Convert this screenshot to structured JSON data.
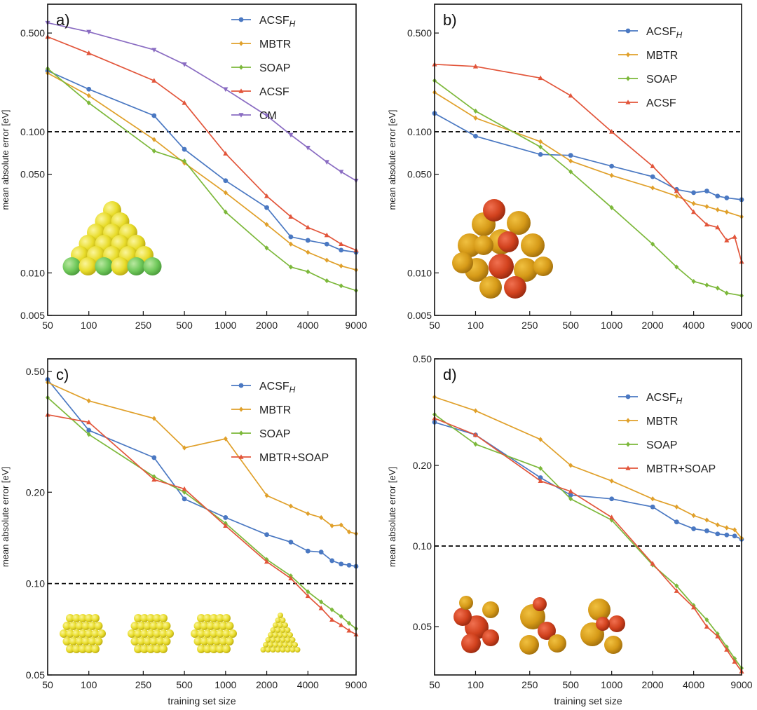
{
  "colors": {
    "ACSF_H": "#4a78c2",
    "MBTR": "#e0a02a",
    "SOAP": "#7cb83a",
    "ACSF": "#e2553a",
    "CM": "#8a6cc2",
    "MBTR+SOAP": "#e2553a"
  },
  "threshold": 0.1,
  "chart_data": [
    {
      "type": "line",
      "panel_label": "a)",
      "ylabel": "mean absolute error [eV]",
      "xlabel": "",
      "x_scale": "log",
      "y_scale": "log",
      "xlim": [
        50,
        9000
      ],
      "ylim": [
        0.005,
        0.8
      ],
      "xticks": [
        50,
        100,
        250,
        500,
        1000,
        2000,
        4000,
        9000
      ],
      "xtick_labels": [
        "50",
        "100",
        "250",
        "500",
        "1000",
        "2000",
        "4000",
        "9000"
      ],
      "yticks": [
        0.005,
        0.01,
        0.05,
        0.1,
        0.5
      ],
      "ytick_labels": [
        "0.005",
        "0.010",
        "0.050",
        "0.100",
        "0.500"
      ],
      "legend": "top-right",
      "series": [
        {
          "name": "ACSF",
          "legend_sub": "H",
          "color_key": "ACSF_H",
          "marker": "circle",
          "x": [
            50,
            100,
            300,
            500,
            1000,
            2000,
            3000,
            4000,
            5500,
            7000,
            9000
          ],
          "y": [
            0.27,
            0.2,
            0.13,
            0.075,
            0.045,
            0.029,
            0.018,
            0.017,
            0.016,
            0.0145,
            0.014
          ]
        },
        {
          "name": "MBTR",
          "color_key": "MBTR",
          "marker": "diamond",
          "x": [
            50,
            100,
            300,
            500,
            1000,
            2000,
            3000,
            4000,
            5500,
            7000,
            9000
          ],
          "y": [
            0.26,
            0.18,
            0.088,
            0.06,
            0.037,
            0.022,
            0.016,
            0.014,
            0.0123,
            0.0112,
            0.0105
          ]
        },
        {
          "name": "SOAP",
          "color_key": "SOAP",
          "marker": "diamond",
          "x": [
            50,
            100,
            300,
            500,
            1000,
            2000,
            3000,
            4000,
            5500,
            7000,
            9000
          ],
          "y": [
            0.28,
            0.16,
            0.073,
            0.062,
            0.027,
            0.015,
            0.011,
            0.0102,
            0.0088,
            0.0081,
            0.0075
          ]
        },
        {
          "name": "ACSF",
          "color_key": "ACSF",
          "marker": "triangle",
          "x": [
            50,
            100,
            300,
            500,
            1000,
            2000,
            3000,
            4000,
            5500,
            7000,
            9000
          ],
          "y": [
            0.47,
            0.36,
            0.23,
            0.16,
            0.07,
            0.035,
            0.025,
            0.021,
            0.0185,
            0.016,
            0.0145
          ]
        },
        {
          "name": "CM",
          "color_key": "CM",
          "marker": "triangle-down",
          "x": [
            50,
            100,
            300,
            500,
            1000,
            2000,
            3000,
            4000,
            5500,
            7000,
            9000
          ],
          "y": [
            0.59,
            0.51,
            0.38,
            0.3,
            0.2,
            0.13,
            0.095,
            0.077,
            0.061,
            0.052,
            0.045
          ]
        }
      ]
    },
    {
      "type": "line",
      "panel_label": "b)",
      "ylabel": "mean absolute error [eV]",
      "xlabel": "",
      "x_scale": "log",
      "y_scale": "log",
      "xlim": [
        50,
        9000
      ],
      "ylim": [
        0.005,
        0.8
      ],
      "xticks": [
        50,
        100,
        250,
        500,
        1000,
        2000,
        4000,
        9000
      ],
      "xtick_labels": [
        "50",
        "100",
        "250",
        "500",
        "1000",
        "2000",
        "4000",
        "9000"
      ],
      "yticks": [
        0.005,
        0.01,
        0.05,
        0.1,
        0.5
      ],
      "ytick_labels": [
        "0.005",
        "0.010",
        "0.050",
        "0.100",
        "0.500"
      ],
      "legend": "top-right",
      "series": [
        {
          "name": "ACSF",
          "legend_sub": "H",
          "color_key": "ACSF_H",
          "marker": "circle",
          "x": [
            50,
            100,
            300,
            500,
            1000,
            2000,
            3000,
            4000,
            5000,
            6000,
            7000,
            9000
          ],
          "y": [
            0.135,
            0.093,
            0.069,
            0.068,
            0.057,
            0.048,
            0.039,
            0.037,
            0.038,
            0.035,
            0.034,
            0.033
          ]
        },
        {
          "name": "MBTR",
          "color_key": "MBTR",
          "marker": "diamond",
          "x": [
            50,
            100,
            300,
            500,
            1000,
            2000,
            3000,
            4000,
            5000,
            6000,
            7000,
            9000
          ],
          "y": [
            0.19,
            0.125,
            0.085,
            0.062,
            0.049,
            0.04,
            0.035,
            0.031,
            0.0295,
            0.028,
            0.027,
            0.025
          ]
        },
        {
          "name": "SOAP",
          "color_key": "SOAP",
          "marker": "diamond",
          "x": [
            50,
            100,
            300,
            500,
            1000,
            2000,
            3000,
            4000,
            5000,
            6000,
            7000,
            9000
          ],
          "y": [
            0.23,
            0.14,
            0.078,
            0.052,
            0.029,
            0.016,
            0.011,
            0.0087,
            0.0082,
            0.0078,
            0.0072,
            0.0069
          ]
        },
        {
          "name": "ACSF",
          "color_key": "ACSF",
          "marker": "triangle",
          "x": [
            50,
            100,
            300,
            500,
            1000,
            2000,
            3000,
            4000,
            5000,
            6000,
            7000,
            8000,
            9000
          ],
          "y": [
            0.3,
            0.29,
            0.24,
            0.18,
            0.1,
            0.057,
            0.038,
            0.027,
            0.022,
            0.021,
            0.017,
            0.018,
            0.012
          ]
        }
      ]
    },
    {
      "type": "line",
      "panel_label": "c)",
      "ylabel": "mean absolute error [eV]",
      "xlabel": "training set size",
      "x_scale": "log",
      "y_scale": "log",
      "xlim": [
        50,
        9000
      ],
      "ylim": [
        0.05,
        0.55
      ],
      "xticks": [
        50,
        100,
        250,
        500,
        1000,
        2000,
        4000,
        9000
      ],
      "xtick_labels": [
        "50",
        "100",
        "250",
        "500",
        "1000",
        "2000",
        "4000",
        "9000"
      ],
      "yticks": [
        0.05,
        0.1,
        0.2,
        0.5
      ],
      "ytick_labels": [
        "0.05",
        "0.10",
        "0.20",
        "0.50"
      ],
      "legend": "top-right",
      "series": [
        {
          "name": "ACSF",
          "legend_sub": "H",
          "color_key": "ACSF_H",
          "marker": "circle",
          "x": [
            50,
            100,
            300,
            500,
            1000,
            2000,
            3000,
            4000,
            5000,
            6000,
            7000,
            8000,
            9000
          ],
          "y": [
            0.47,
            0.32,
            0.26,
            0.19,
            0.165,
            0.145,
            0.137,
            0.128,
            0.127,
            0.119,
            0.116,
            0.115,
            0.114
          ]
        },
        {
          "name": "MBTR",
          "color_key": "MBTR",
          "marker": "diamond",
          "x": [
            50,
            100,
            300,
            500,
            1000,
            2000,
            3000,
            4000,
            5000,
            6000,
            7000,
            8000,
            9000
          ],
          "y": [
            0.46,
            0.4,
            0.35,
            0.28,
            0.3,
            0.195,
            0.18,
            0.17,
            0.165,
            0.155,
            0.156,
            0.148,
            0.146
          ]
        },
        {
          "name": "SOAP",
          "color_key": "SOAP",
          "marker": "diamond",
          "x": [
            50,
            100,
            300,
            500,
            1000,
            2000,
            3000,
            4000,
            5000,
            6000,
            7000,
            8000,
            9000
          ],
          "y": [
            0.41,
            0.31,
            0.225,
            0.2,
            0.158,
            0.12,
            0.106,
            0.094,
            0.087,
            0.082,
            0.078,
            0.074,
            0.071
          ]
        },
        {
          "name": "MBTR+SOAP",
          "color_key": "MBTR+SOAP",
          "marker": "triangle",
          "x": [
            50,
            100,
            300,
            500,
            1000,
            2000,
            3000,
            4000,
            5000,
            6000,
            7000,
            8000,
            9000
          ],
          "y": [
            0.36,
            0.34,
            0.22,
            0.205,
            0.155,
            0.118,
            0.104,
            0.091,
            0.083,
            0.076,
            0.073,
            0.07,
            0.068
          ]
        }
      ]
    },
    {
      "type": "line",
      "panel_label": "d)",
      "ylabel": "mean absolute error [eV]",
      "xlabel": "training set size",
      "x_scale": "log",
      "y_scale": "log",
      "xlim": [
        50,
        9000
      ],
      "ylim": [
        0.033,
        0.5
      ],
      "xticks": [
        50,
        100,
        250,
        500,
        1000,
        2000,
        4000,
        9000
      ],
      "xtick_labels": [
        "50",
        "100",
        "250",
        "500",
        "1000",
        "2000",
        "4000",
        "9000"
      ],
      "yticks": [
        0.05,
        0.1,
        0.2,
        0.5
      ],
      "ytick_labels": [
        "0.05",
        "0.10",
        "0.20",
        "0.50"
      ],
      "legend": "top-right",
      "series": [
        {
          "name": "ACSF",
          "legend_sub": "H",
          "color_key": "ACSF_H",
          "marker": "circle",
          "x": [
            50,
            100,
            300,
            500,
            1000,
            2000,
            3000,
            4000,
            5000,
            6000,
            7000,
            8000,
            9000
          ],
          "y": [
            0.29,
            0.26,
            0.18,
            0.155,
            0.15,
            0.14,
            0.123,
            0.116,
            0.114,
            0.111,
            0.11,
            0.109,
            0.106
          ]
        },
        {
          "name": "MBTR",
          "color_key": "MBTR",
          "marker": "diamond",
          "x": [
            50,
            100,
            300,
            500,
            1000,
            2000,
            3000,
            4000,
            5000,
            6000,
            7000,
            8000,
            9000
          ],
          "y": [
            0.36,
            0.32,
            0.25,
            0.2,
            0.175,
            0.15,
            0.14,
            0.13,
            0.125,
            0.12,
            0.117,
            0.115,
            0.107
          ]
        },
        {
          "name": "SOAP",
          "color_key": "SOAP",
          "marker": "diamond",
          "x": [
            50,
            100,
            300,
            500,
            1000,
            2000,
            3000,
            4000,
            5000,
            6000,
            7000,
            8000,
            9000
          ],
          "y": [
            0.31,
            0.24,
            0.195,
            0.15,
            0.125,
            0.085,
            0.071,
            0.06,
            0.053,
            0.047,
            0.042,
            0.038,
            0.035
          ]
        },
        {
          "name": "MBTR+SOAP",
          "color_key": "MBTR+SOAP",
          "marker": "triangle",
          "x": [
            50,
            100,
            300,
            500,
            1000,
            2000,
            3000,
            4000,
            5000,
            6000,
            7000,
            8000,
            9000
          ],
          "y": [
            0.3,
            0.26,
            0.175,
            0.16,
            0.128,
            0.086,
            0.068,
            0.059,
            0.05,
            0.046,
            0.041,
            0.037,
            0.034
          ]
        }
      ]
    }
  ]
}
